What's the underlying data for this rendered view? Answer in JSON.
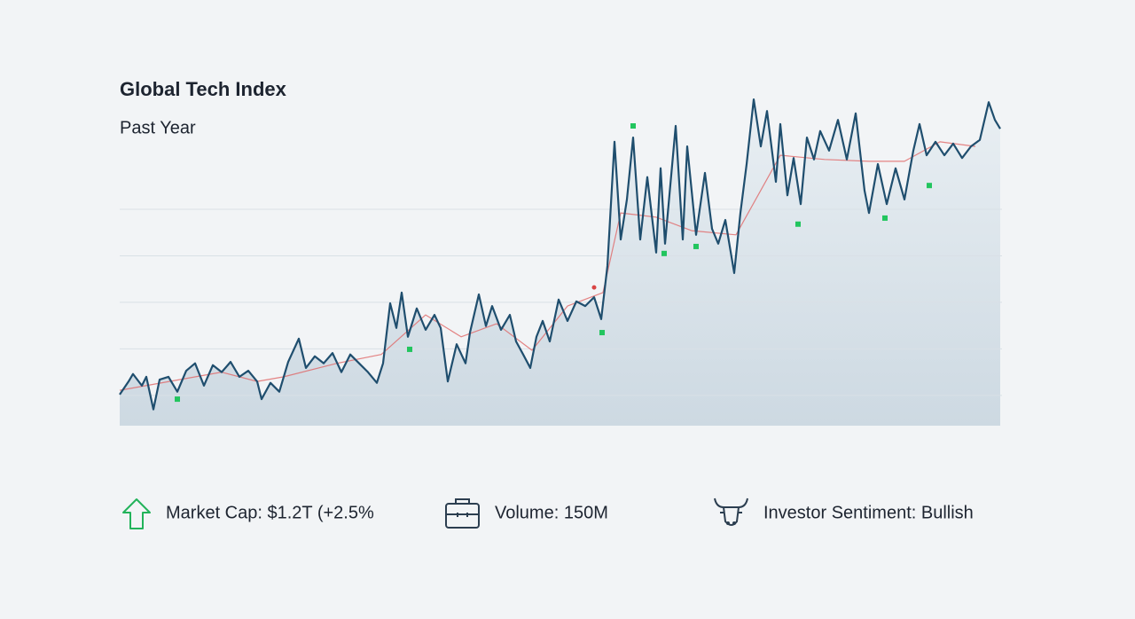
{
  "chart_data": {
    "type": "line",
    "title": "Global Tech Index",
    "subtitle": "Past Year",
    "xlim": [
      0,
      995
    ],
    "ylim": [
      0.35,
      7.4
    ],
    "yticks": [
      1,
      2,
      3,
      4,
      5
    ],
    "grid": true,
    "series": [
      {
        "color": "#1f4e6e",
        "x": [
          0,
          10,
          15,
          25,
          30,
          38,
          45,
          55,
          65,
          75,
          85,
          95,
          105,
          115,
          125,
          135,
          145,
          155,
          160,
          170,
          180,
          190,
          202,
          210,
          220,
          230,
          240,
          250,
          260,
          270,
          280,
          290,
          297,
          305,
          312,
          318,
          325,
          335,
          345,
          355,
          362,
          370,
          380,
          390,
          395,
          405,
          413,
          420,
          430,
          440,
          447,
          455,
          463,
          470,
          477,
          485,
          495,
          505,
          515,
          525,
          535,
          543,
          550,
          558,
          565,
          572,
          579,
          587,
          595,
          605,
          610,
          615,
          627,
          635,
          640,
          650,
          660,
          668,
          675,
          683,
          693,
          700,
          707,
          715,
          723,
          730,
          740,
          745,
          753,
          760,
          768,
          775,
          783,
          790,
          800,
          810,
          820,
          830,
          840,
          845,
          855,
          865,
          875,
          885,
          895,
          902,
          910,
          920,
          930,
          940,
          950,
          960,
          970,
          980,
          987,
          993
        ],
        "values": [
          1.02,
          1.3,
          1.46,
          1.21,
          1.4,
          0.7,
          1.34,
          1.4,
          1.08,
          1.53,
          1.69,
          1.21,
          1.65,
          1.5,
          1.72,
          1.4,
          1.53,
          1.3,
          0.92,
          1.27,
          1.08,
          1.72,
          2.22,
          1.59,
          1.84,
          1.69,
          1.91,
          1.5,
          1.88,
          1.69,
          1.5,
          1.27,
          1.69,
          2.98,
          2.45,
          3.21,
          2.26,
          2.87,
          2.41,
          2.73,
          2.45,
          1.3,
          2.1,
          1.69,
          2.35,
          3.17,
          2.49,
          2.92,
          2.41,
          2.73,
          2.16,
          1.88,
          1.59,
          2.26,
          2.6,
          2.16,
          3.06,
          2.6,
          3.02,
          2.92,
          3.11,
          2.64,
          3.78,
          6.45,
          4.35,
          5.21,
          6.54,
          4.35,
          5.69,
          4.07,
          5.88,
          4.26,
          6.79,
          4.35,
          6.35,
          4.45,
          5.78,
          4.58,
          4.26,
          4.77,
          3.63,
          4.92,
          5.97,
          7.36,
          6.35,
          7.11,
          5.59,
          6.83,
          5.3,
          6.1,
          5.11,
          6.54,
          6.07,
          6.68,
          6.26,
          6.92,
          6.07,
          7.06,
          5.4,
          4.92,
          5.97,
          5.11,
          5.88,
          5.21,
          6.26,
          6.83,
          6.16,
          6.45,
          6.16,
          6.41,
          6.1,
          6.35,
          6.49,
          7.3,
          6.92,
          6.73
        ]
      },
      {
        "color": "#e06666",
        "x": [
          0,
          115,
          155,
          185,
          245,
          295,
          345,
          385,
          425,
          465,
          505,
          545,
          565,
          605,
          645,
          695,
          745,
          795,
          845,
          885,
          925,
          965
        ],
        "values": [
          1.11,
          1.5,
          1.3,
          1.4,
          1.69,
          1.88,
          2.73,
          2.26,
          2.54,
          1.97,
          2.92,
          3.21,
          4.92,
          4.83,
          4.54,
          4.45,
          6.16,
          6.07,
          6.03,
          6.03,
          6.45,
          6.35
        ]
      }
    ],
    "markers": [
      {
        "color": "#22c55e",
        "x": [
          65,
          327,
          544,
          579,
          614,
          650,
          765,
          863,
          913
        ],
        "values": [
          0.92,
          1.99,
          2.35,
          6.79,
          4.05,
          4.2,
          4.68,
          4.81,
          5.51
        ]
      },
      {
        "color": "#d94444",
        "x": [
          535
        ],
        "values": [
          3.32
        ]
      }
    ],
    "stats": [
      "Market Cap: $1.2T (+2.5%",
      "Volume: 150M",
      "Investor Sentiment: Bullish"
    ]
  }
}
